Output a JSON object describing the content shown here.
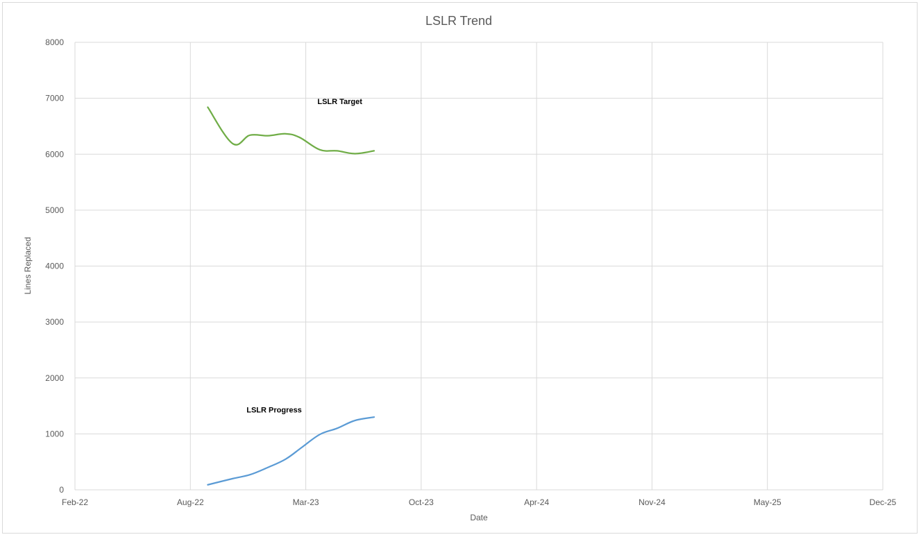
{
  "chart_data": {
    "type": "line",
    "title": "LSLR Trend",
    "xlabel": "Date",
    "ylabel": "Lines Replaced",
    "x_axis": {
      "ticks": [
        "Feb-22",
        "Aug-22",
        "Mar-23",
        "Oct-23",
        "Apr-24",
        "Nov-24",
        "May-25",
        "Dec-25"
      ],
      "range": [
        "2022-02-01",
        "2025-12-01"
      ]
    },
    "y_axis": {
      "ticks": [
        "0",
        "1000",
        "2000",
        "3000",
        "4000",
        "5000",
        "6000",
        "7000",
        "8000"
      ],
      "range": [
        0,
        8000
      ]
    },
    "grid": true,
    "series": [
      {
        "name": "LSLR Target",
        "color": "#70ad47",
        "points": [
          {
            "x": "2022-09-19",
            "y": 6840
          },
          {
            "x": "2022-11-01",
            "y": 6190
          },
          {
            "x": "2022-12-01",
            "y": 6340
          },
          {
            "x": "2023-01-01",
            "y": 6330
          },
          {
            "x": "2023-02-01",
            "y": 6365
          },
          {
            "x": "2023-02-25",
            "y": 6300
          },
          {
            "x": "2023-04-01",
            "y": 6080
          },
          {
            "x": "2023-05-01",
            "y": 6060
          },
          {
            "x": "2023-06-01",
            "y": 6010
          },
          {
            "x": "2023-07-04",
            "y": 6060
          }
        ]
      },
      {
        "name": "LSLR Progress",
        "color": "#5b9bd5",
        "points": [
          {
            "x": "2022-09-19",
            "y": 90
          },
          {
            "x": "2022-11-01",
            "y": 200
          },
          {
            "x": "2022-12-01",
            "y": 270
          },
          {
            "x": "2023-01-01",
            "y": 400
          },
          {
            "x": "2023-02-01",
            "y": 550
          },
          {
            "x": "2023-03-01",
            "y": 760
          },
          {
            "x": "2023-04-01",
            "y": 990
          },
          {
            "x": "2023-05-01",
            "y": 1100
          },
          {
            "x": "2023-06-01",
            "y": 1240
          },
          {
            "x": "2023-07-04",
            "y": 1300
          }
        ]
      }
    ],
    "annotations": [
      {
        "text": "LSLR Target",
        "series": 0
      },
      {
        "text": "LSLR Progress",
        "series": 1
      }
    ]
  }
}
